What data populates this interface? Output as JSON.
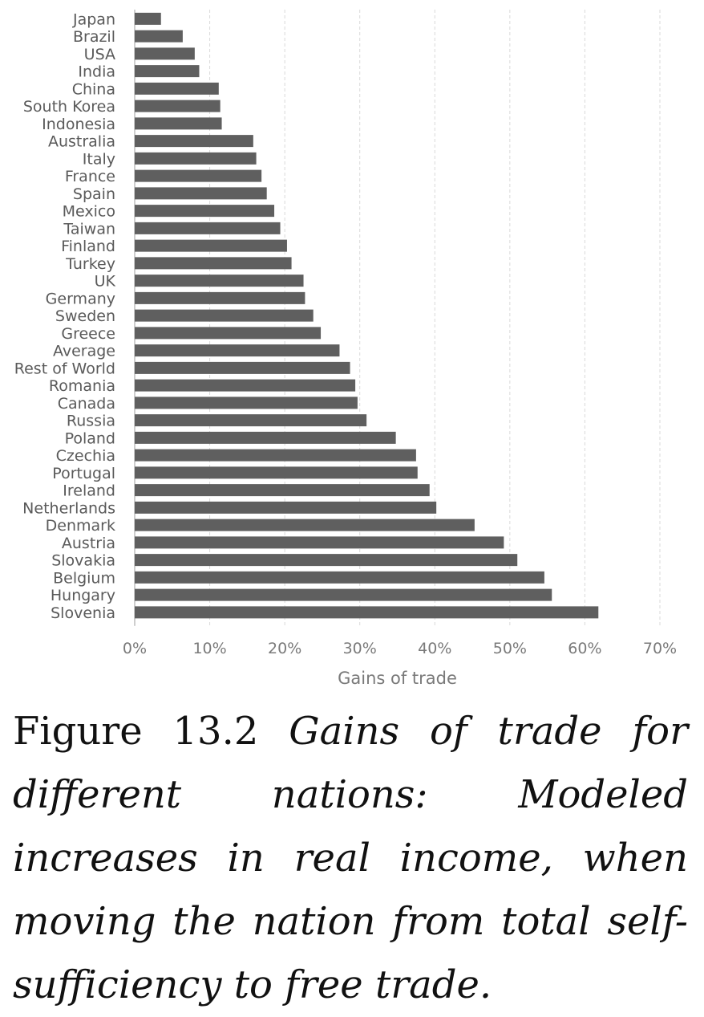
{
  "chart_data": {
    "type": "bar",
    "orientation": "horizontal",
    "categories": [
      "Japan",
      "Brazil",
      "USA",
      "India",
      "China",
      "South Korea",
      "Indonesia",
      "Australia",
      "Italy",
      "France",
      "Spain",
      "Mexico",
      "Taiwan",
      "Finland",
      "Turkey",
      "UK",
      "Germany",
      "Sweden",
      "Greece",
      "Average",
      "Rest of World",
      "Romania",
      "Canada",
      "Russia",
      "Poland",
      "Czechia",
      "Portugal",
      "Ireland",
      "Netherlands",
      "Denmark",
      "Austria",
      "Slovakia",
      "Belgium",
      "Hungary",
      "Slovenia"
    ],
    "values": [
      3.5,
      6.4,
      8.0,
      8.6,
      11.2,
      11.4,
      11.6,
      15.8,
      16.2,
      16.9,
      17.6,
      18.6,
      19.4,
      20.3,
      20.9,
      22.5,
      22.7,
      23.8,
      24.8,
      27.3,
      28.7,
      29.4,
      29.7,
      30.9,
      34.8,
      37.5,
      37.7,
      39.3,
      40.2,
      45.3,
      49.2,
      51.0,
      54.6,
      55.6,
      61.8
    ],
    "xlabel": "Gains of trade",
    "xlim": [
      0,
      70
    ],
    "x_ticks": [
      "0%",
      "10%",
      "20%",
      "30%",
      "40%",
      "50%",
      "60%",
      "70%"
    ],
    "grid": "vertical dashed",
    "bar_color": "#5f5f5f"
  },
  "caption": {
    "label": "Figure 13.2",
    "text": "Gains of trade for different nations: Modeled increases in real income, when moving the nation from total self-sufficiency to free trade."
  }
}
